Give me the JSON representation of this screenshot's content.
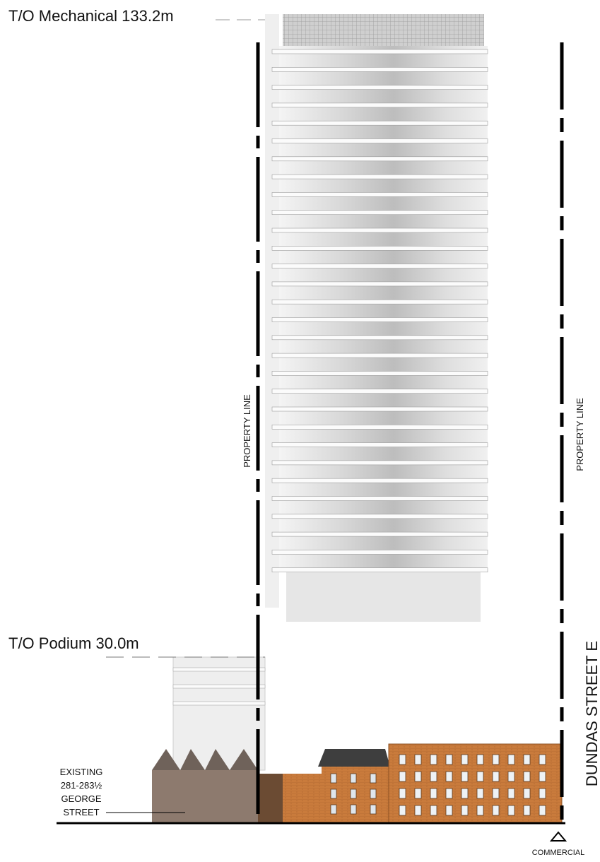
{
  "levels": {
    "mechanical": "T/O Mechanical  133.2m",
    "podium": "T/O Podium  30.0m"
  },
  "property_lines": [
    "PROPERTY LINE",
    "PROPERTY LINE"
  ],
  "existing": [
    "EXISTING",
    "281-283½",
    "GEORGE",
    "STREET"
  ],
  "street": "DUNDAS STREET E",
  "commercial": "COMMERCIAL"
}
